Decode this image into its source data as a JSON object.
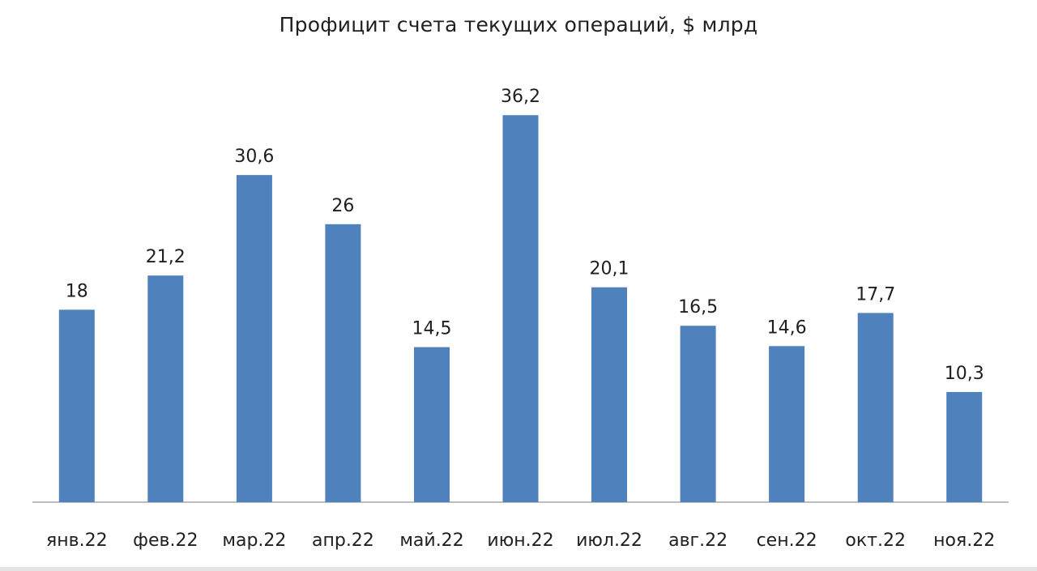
{
  "chart_data": {
    "type": "bar",
    "title": "Профицит счета текущих операций, $ млрд",
    "categories": [
      "янв.22",
      "фев.22",
      "мар.22",
      "апр.22",
      "май.22",
      "июн.22",
      "июл.22",
      "авг.22",
      "сен.22",
      "окт.22",
      "ноя.22"
    ],
    "values": [
      18,
      21.2,
      30.6,
      26,
      14.5,
      36.2,
      20.1,
      16.5,
      14.6,
      17.7,
      10.3
    ],
    "value_labels": [
      "18",
      "21,2",
      "30,6",
      "26",
      "14,5",
      "36,2",
      "20,1",
      "16,5",
      "14,6",
      "17,7",
      "10,3"
    ],
    "xlabel": "",
    "ylabel": "",
    "ylim": [
      0,
      38
    ],
    "grid": false,
    "legend": "none",
    "bar_color": "#4f81bd",
    "axis_color": "#a6a6a6"
  }
}
